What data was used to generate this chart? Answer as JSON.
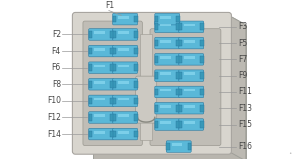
{
  "bg_color": "#ffffff",
  "box_main_color": "#d8d5ce",
  "box_edge_color": "#b0ada6",
  "box_top_color": "#c8c5be",
  "box_right_color": "#bcb9b2",
  "inner_panel_color": "#c0bdb6",
  "center_strip_color": "#d0cdc6",
  "clip_color": "#d4d1ca",
  "fuse_body": "#5ab8d8",
  "fuse_cap": "#3898b8",
  "fuse_highlight": "#88d8f0",
  "fuse_dark": "#2878a0",
  "label_color": "#444444",
  "line_color": "#999999",
  "left_labels": [
    "F2",
    "F4",
    "F6",
    "F8",
    "F10",
    "F12",
    "F14"
  ],
  "right_labels": [
    "F3",
    "F5",
    "F7",
    "F9",
    "F11",
    "F13",
    "F15"
  ],
  "watermark": "•",
  "top_label": "F1",
  "f16_label": "F16"
}
